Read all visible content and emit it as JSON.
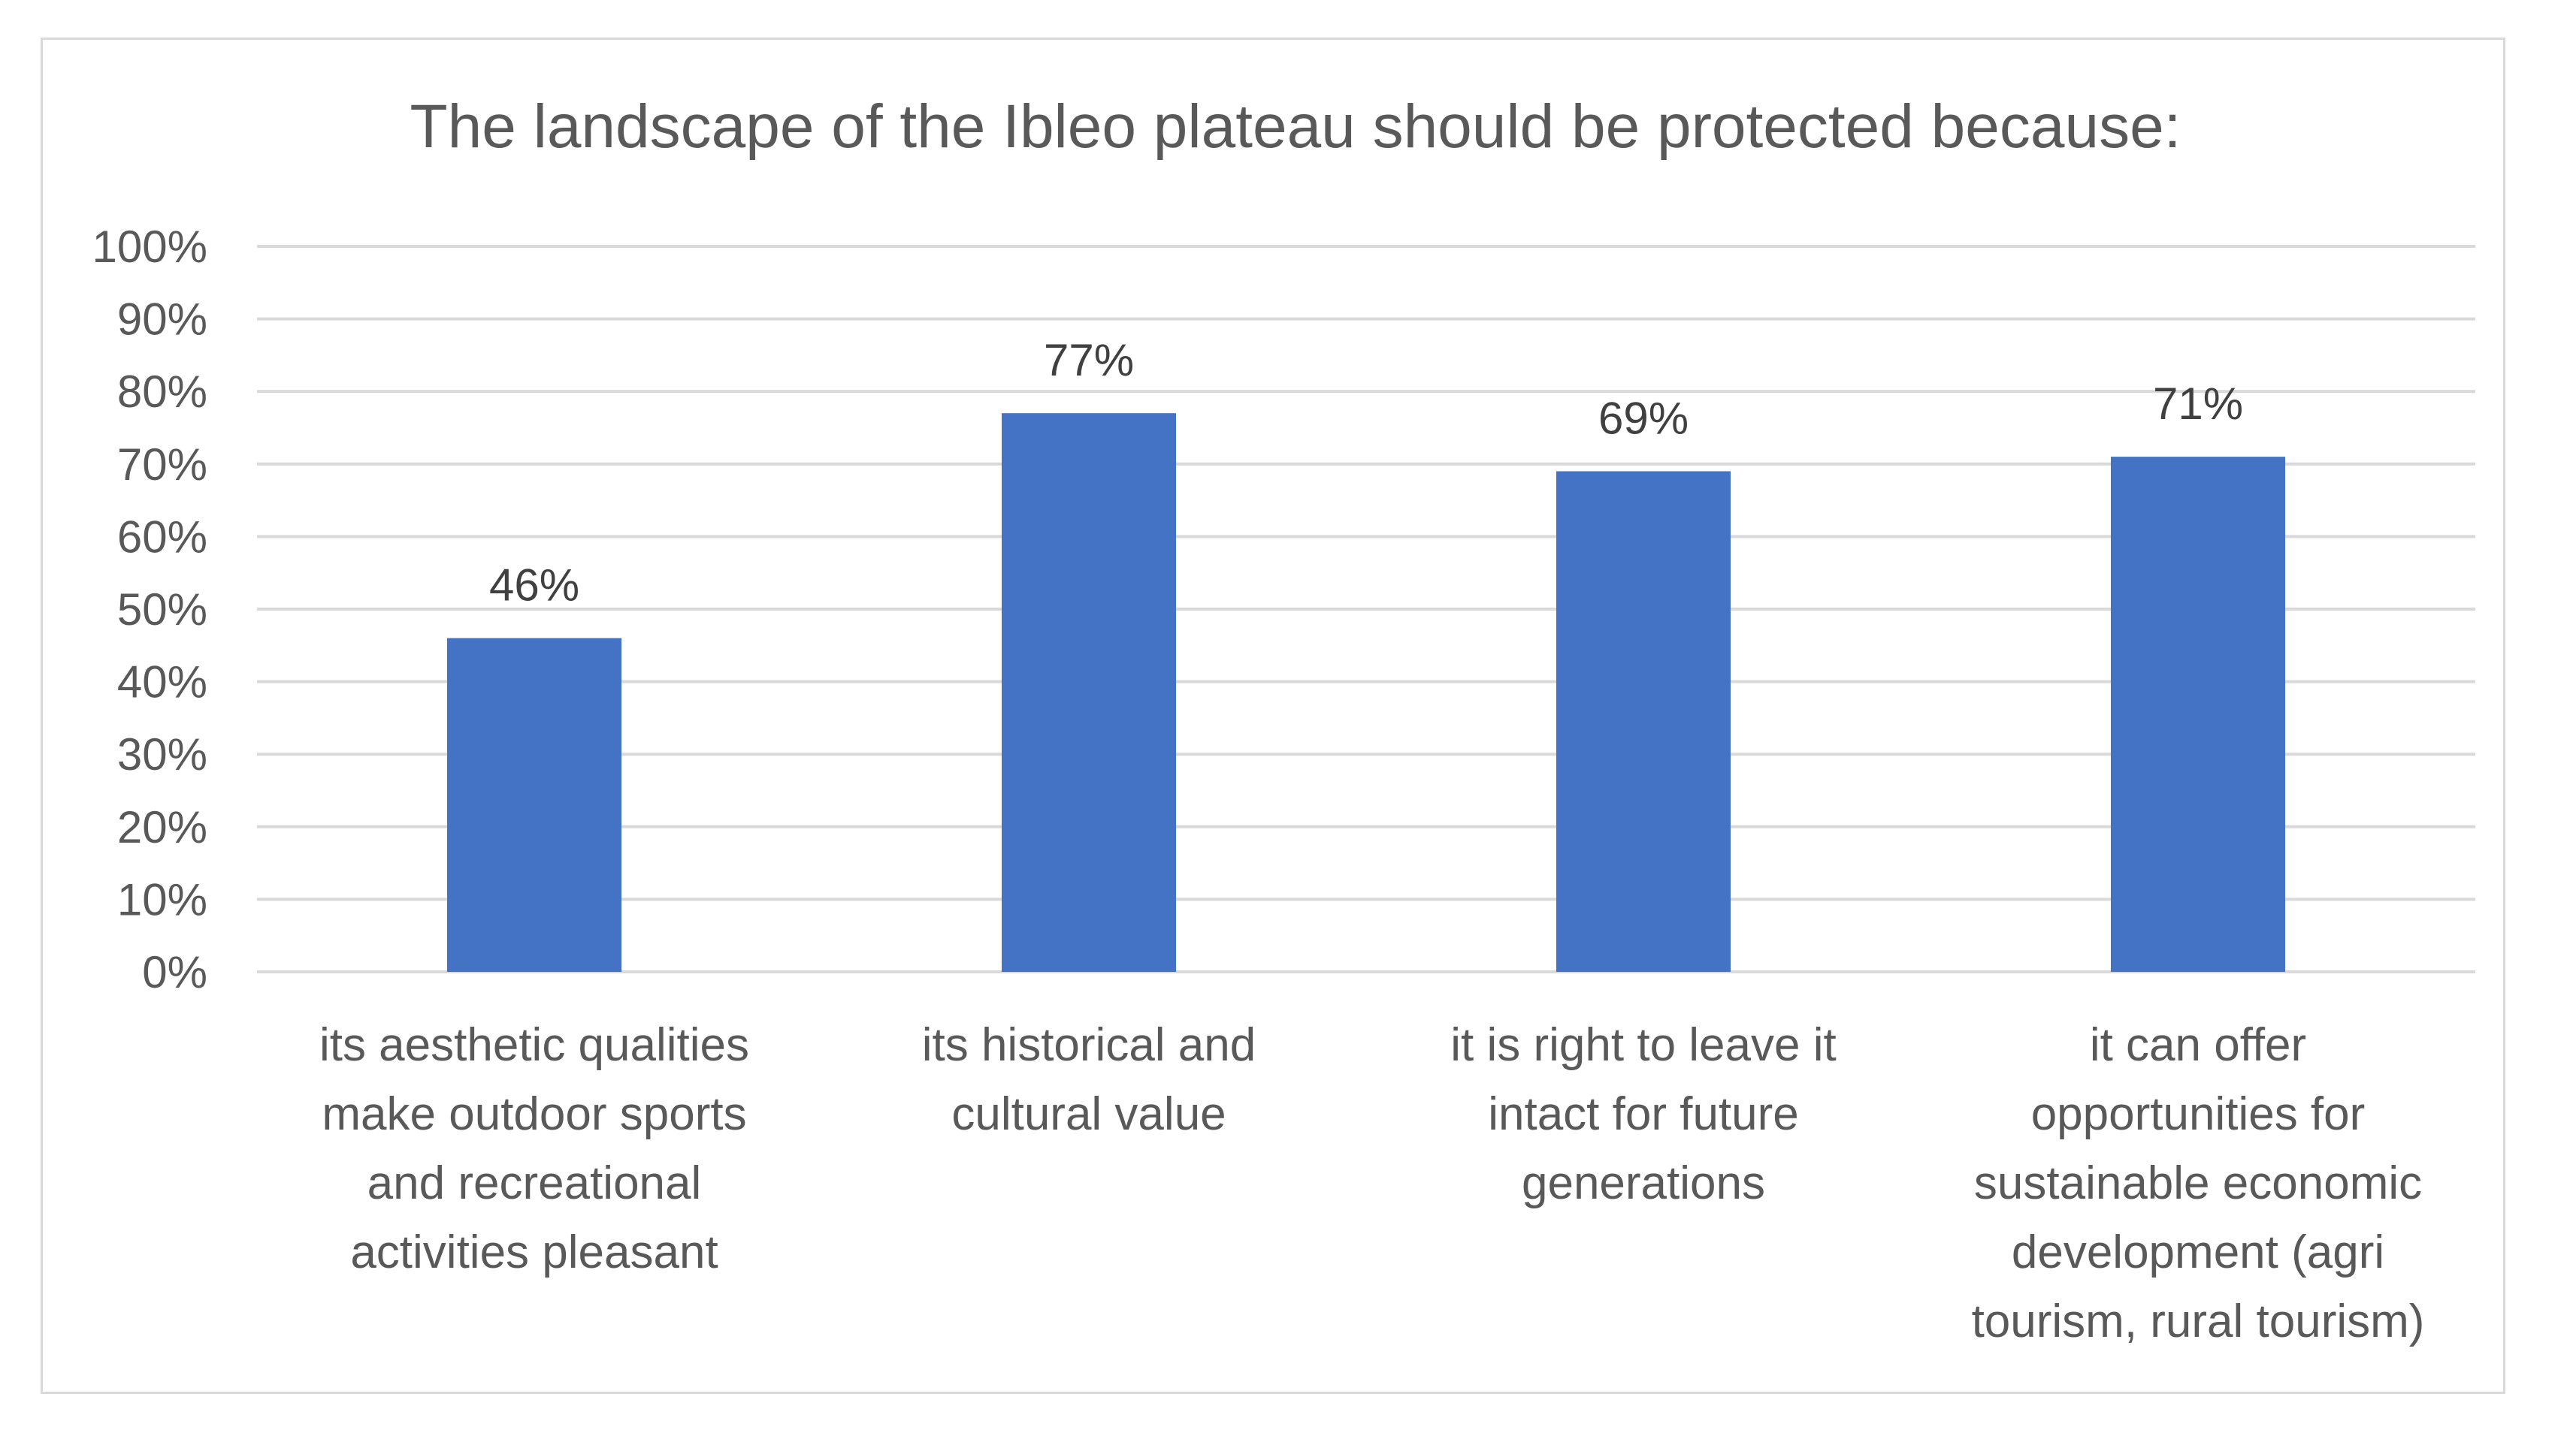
{
  "chart_data": {
    "type": "bar",
    "title": "The landscape of the Ibleo plateau should be protected because:",
    "categories": [
      [
        "its aesthetic qualities",
        "make outdoor sports",
        "and recreational",
        "activities pleasant"
      ],
      [
        "its historical and",
        "cultural value"
      ],
      [
        "it is right to leave it",
        "intact for future",
        "generations"
      ],
      [
        "it can offer",
        "opportunities for",
        "sustainable economic",
        "development (agri",
        "tourism, rural tourism)"
      ]
    ],
    "values": [
      46,
      77,
      69,
      71
    ],
    "value_labels": [
      "46%",
      "77%",
      "69%",
      "71%"
    ],
    "ylim": [
      0,
      100
    ],
    "yticks": [
      "0%",
      "10%",
      "20%",
      "30%",
      "40%",
      "50%",
      "60%",
      "70%",
      "80%",
      "90%",
      "100%"
    ],
    "bar_color": "#4472c4",
    "gridline_color": "#d9d9d9",
    "grid": true,
    "legend": false,
    "xlabel": "",
    "ylabel": ""
  }
}
